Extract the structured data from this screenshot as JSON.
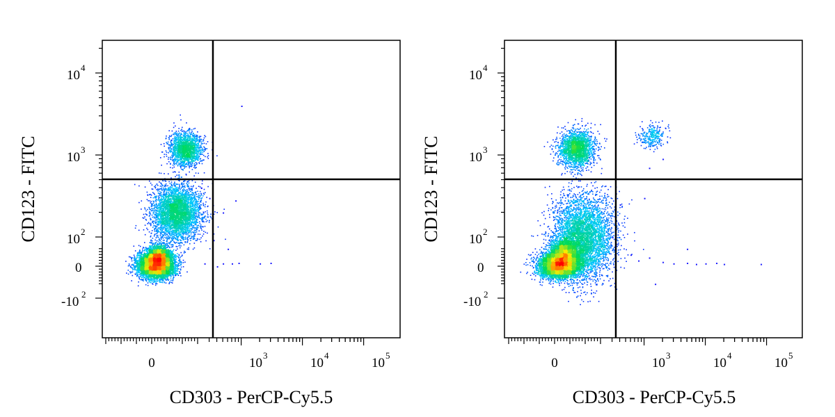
{
  "chart_data": [
    {
      "type": "scatter",
      "plot_style": "flow-cytometry-density",
      "xlabel": "CD303 - PerCP-Cy5.5",
      "ylabel": "CD123 - FITC",
      "x_scale": "biexponential",
      "y_scale": "biexponential",
      "x_tick_labels": [
        "0",
        "10^3",
        "10^4",
        "10^5"
      ],
      "y_tick_labels": [
        "10^4",
        "10^3",
        "10^2",
        "0",
        "-10^2"
      ],
      "x_gate": 200,
      "y_gate": 500,
      "grid": false,
      "populations": [
        {
          "cx": 0,
          "cy": 0,
          "sx": 25,
          "sy": 18,
          "n": 5200,
          "dense": true
        },
        {
          "cx": 80,
          "cy": 200,
          "sx": 45,
          "sy": 110,
          "n": 3800
        },
        {
          "cx": 110,
          "cy": 1200,
          "sx": 30,
          "sy": 350,
          "n": 1700
        },
        {
          "cx": 20,
          "cy": 40,
          "sx": 20,
          "sy": 20,
          "n": 1500
        }
      ],
      "sparse_points": [
        {
          "x": 1000,
          "y": 4000
        },
        {
          "x": 500,
          "y": 200
        },
        {
          "x": 800,
          "y": 280
        },
        {
          "x": 300,
          "y": 300
        },
        {
          "x": 350,
          "y": 90
        },
        {
          "x": 600,
          "y": 60
        },
        {
          "x": 700,
          "y": 10
        },
        {
          "x": 500,
          "y": 10
        },
        {
          "x": 900,
          "y": 12
        },
        {
          "x": 2000,
          "y": 10
        },
        {
          "x": 400,
          "y": 0
        },
        {
          "x": 3000,
          "y": 12
        },
        {
          "x": 250,
          "y": 10
        },
        {
          "x": 220,
          "y": 400
        }
      ]
    },
    {
      "type": "scatter",
      "plot_style": "flow-cytometry-density",
      "xlabel": "CD303 - PerCP-Cy5.5",
      "ylabel": "CD123 - FITC",
      "x_scale": "biexponential",
      "y_scale": "biexponential",
      "x_tick_labels": [
        "0",
        "10^3",
        "10^4",
        "10^5"
      ],
      "y_tick_labels": [
        "10^4",
        "10^3",
        "10^2",
        "0",
        "-10^2"
      ],
      "x_gate": 200,
      "y_gate": 500,
      "grid": false,
      "populations": [
        {
          "cx": 0,
          "cy": 0,
          "sx": 30,
          "sy": 18,
          "n": 4500,
          "dense": true
        },
        {
          "cx": 90,
          "cy": 100,
          "sx": 55,
          "sy": 90,
          "n": 4500
        },
        {
          "cx": 70,
          "cy": 1200,
          "sx": 32,
          "sy": 400,
          "n": 2000
        },
        {
          "cx": 1300,
          "cy": 1700,
          "sx": 400,
          "sy": 350,
          "n": 280
        },
        {
          "cx": 30,
          "cy": 50,
          "sx": 25,
          "sy": 25,
          "n": 1500
        }
      ],
      "sparse_points": [
        {
          "x": 600,
          "y": 40
        },
        {
          "x": 800,
          "y": 20
        },
        {
          "x": 1200,
          "y": 30
        },
        {
          "x": 2000,
          "y": 15
        },
        {
          "x": 3000,
          "y": 10
        },
        {
          "x": 5000,
          "y": 12
        },
        {
          "x": 7000,
          "y": 8
        },
        {
          "x": 10000,
          "y": 10
        },
        {
          "x": 15000,
          "y": 12
        },
        {
          "x": 20000,
          "y": 8
        },
        {
          "x": 80000,
          "y": 8
        },
        {
          "x": 1500,
          "y": -60
        },
        {
          "x": 400,
          "y": 250
        },
        {
          "x": 2000,
          "y": 900
        },
        {
          "x": 1200,
          "y": 700
        },
        {
          "x": 5000,
          "y": 60
        },
        {
          "x": 300,
          "y": 100
        },
        {
          "x": 1000,
          "y": 300
        }
      ]
    }
  ]
}
